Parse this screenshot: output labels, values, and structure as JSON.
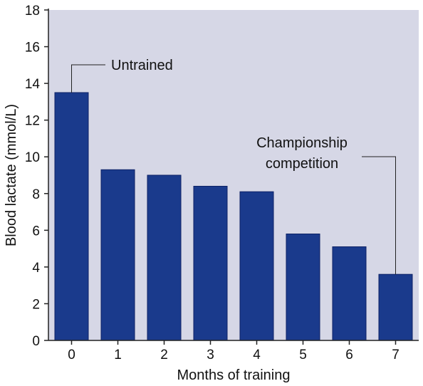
{
  "chart_data": {
    "type": "bar",
    "title": "",
    "xlabel": "Months of training",
    "ylabel": "Blood lactate (mmol/L)",
    "categories": [
      "0",
      "1",
      "2",
      "3",
      "4",
      "5",
      "6",
      "7"
    ],
    "values": [
      13.5,
      9.3,
      9.0,
      8.4,
      8.1,
      5.8,
      5.1,
      3.6
    ],
    "ylim": [
      0,
      18
    ],
    "yticks": [
      "0",
      "2",
      "4",
      "6",
      "8",
      "10",
      "12",
      "14",
      "16",
      "18"
    ],
    "grid": false,
    "annotations": [
      {
        "lines": [
          "Untrained"
        ],
        "category": "0"
      },
      {
        "lines": [
          "Championship",
          "competition"
        ],
        "category": "7"
      }
    ],
    "colors": {
      "bar": "#1a3a8c",
      "plot_background": "#d6d7e6",
      "axis": "#222222",
      "leader": "#222222"
    }
  }
}
